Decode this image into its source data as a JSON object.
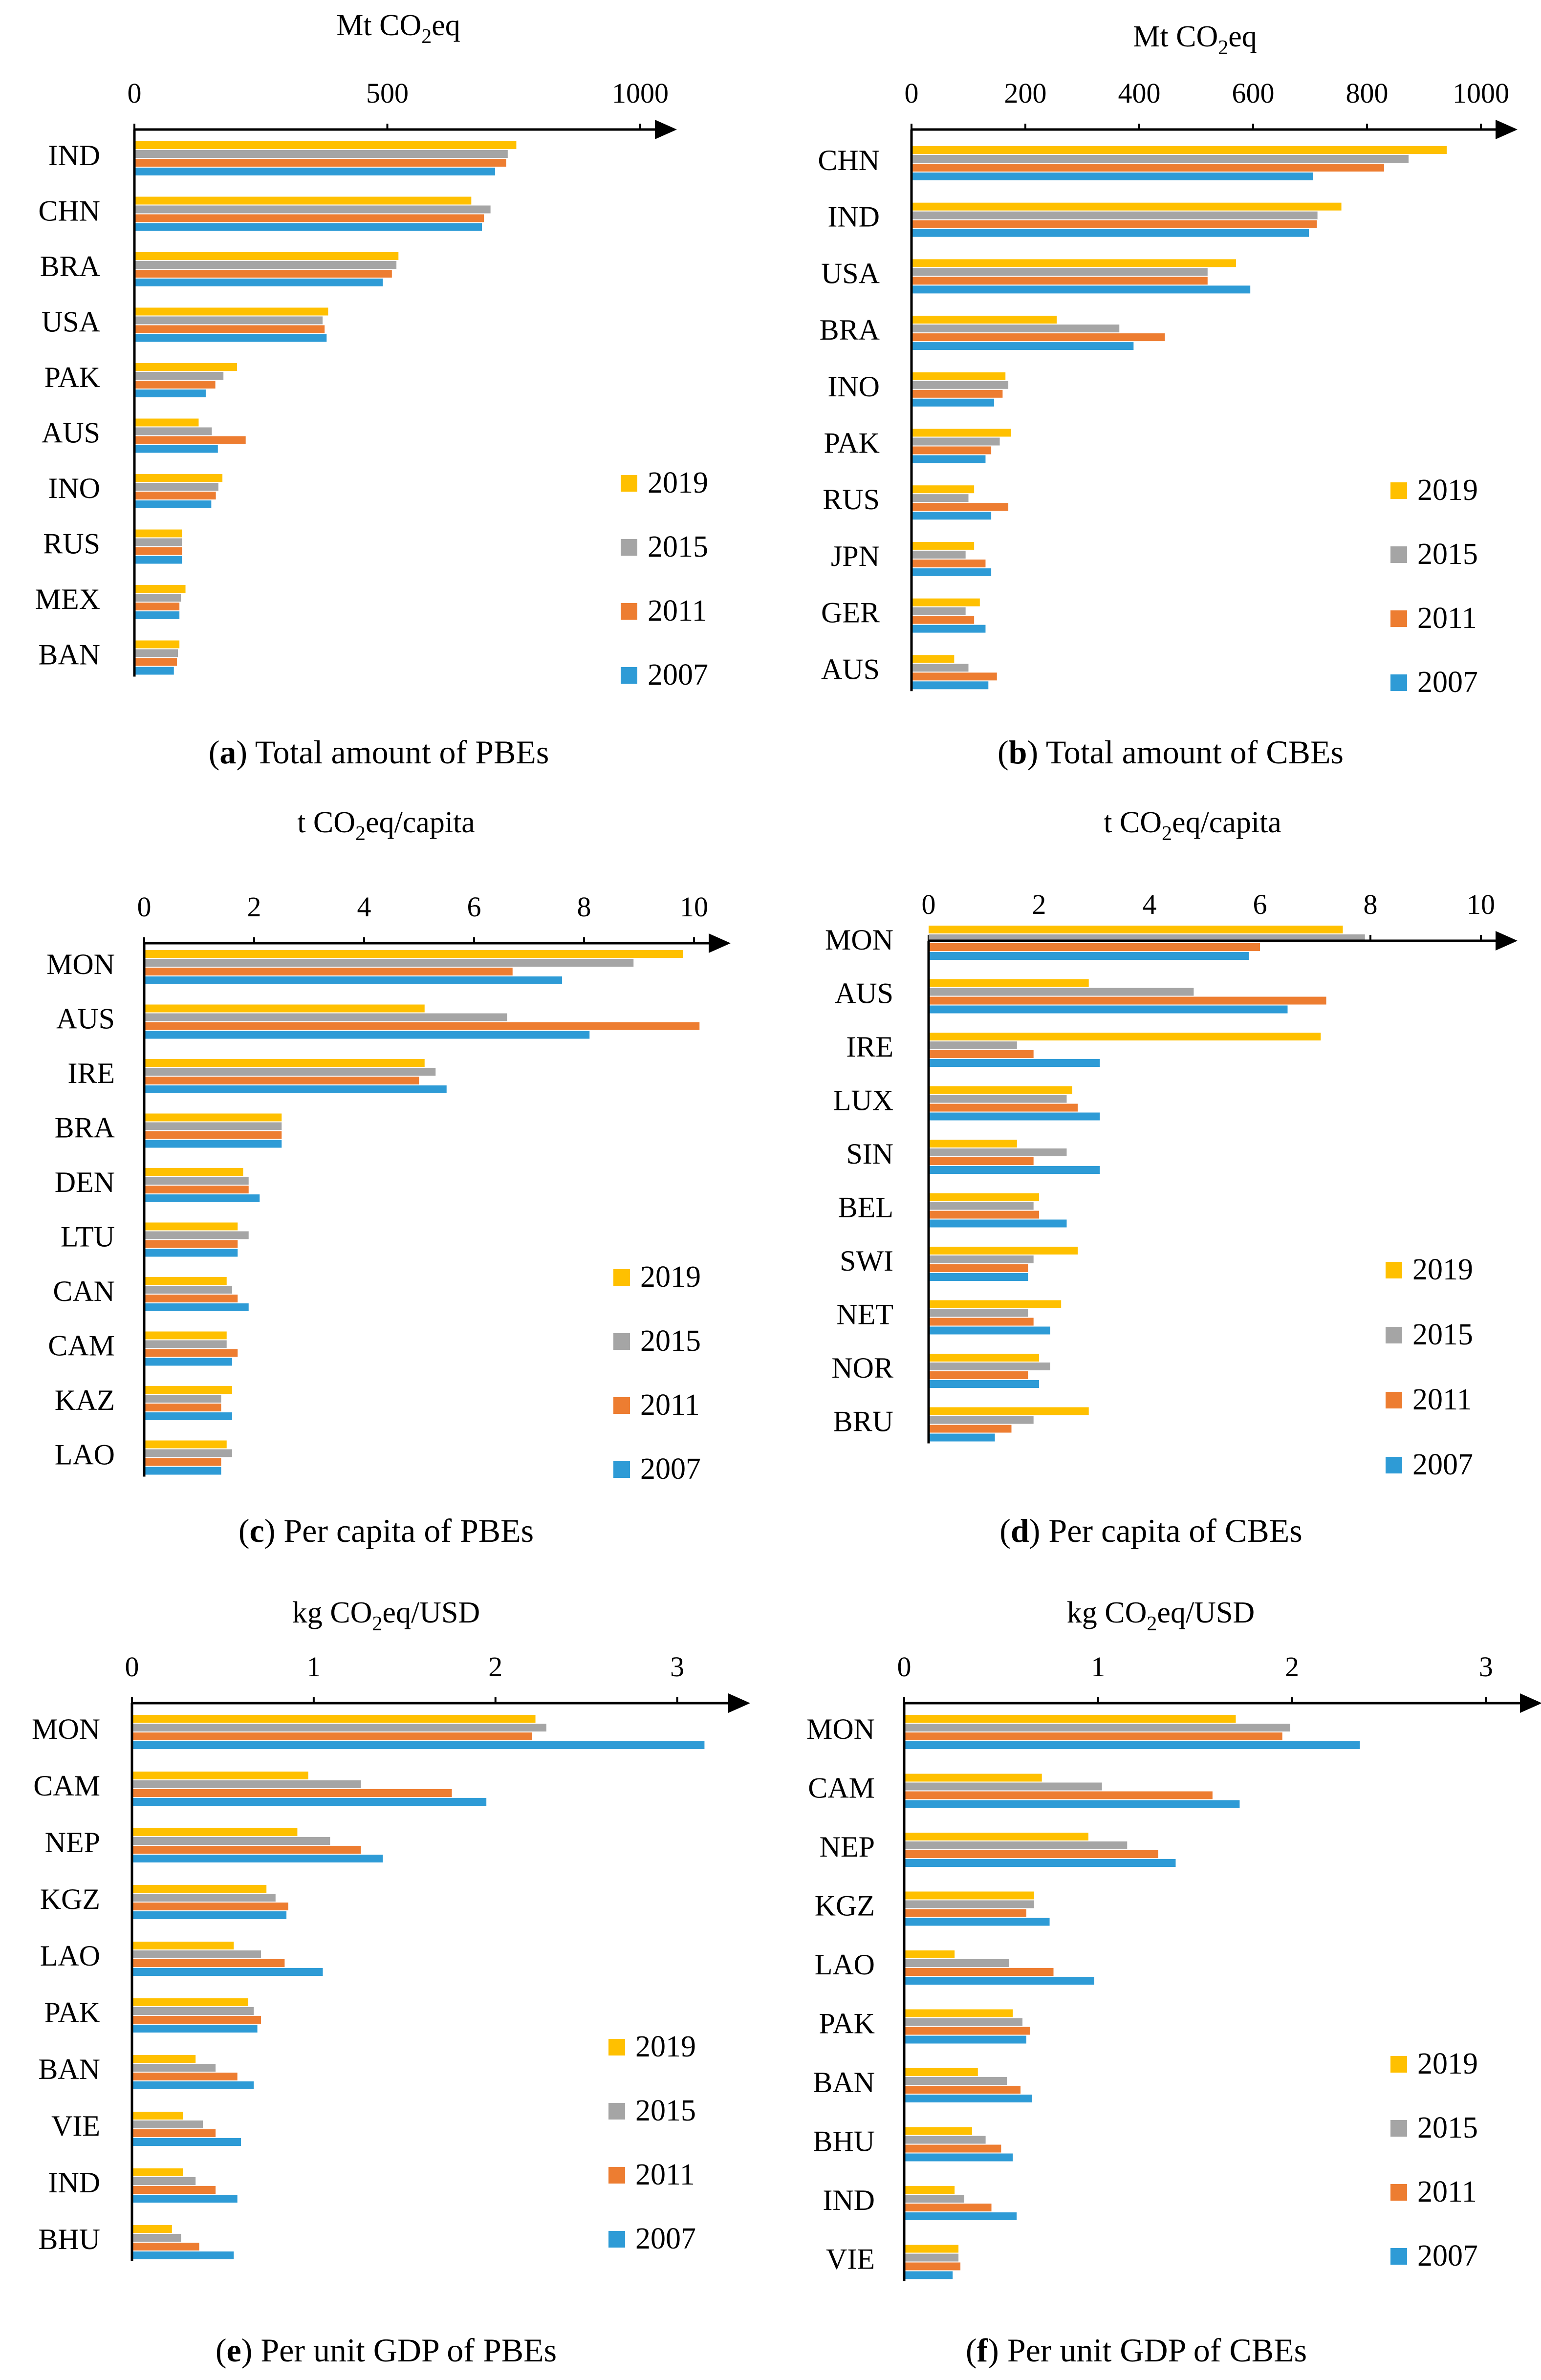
{
  "colors": {
    "2019": "#FFC000",
    "2015": "#A5A5A5",
    "2011": "#ED7D31",
    "2007": "#2E9BD6",
    "axis": "#000000"
  },
  "chart_data": [
    {
      "type": "bar",
      "orientation": "horizontal",
      "panel_label": "a",
      "caption": "Total amount of PBEs",
      "unit_pre": "Mt CO",
      "unit_sub": "2",
      "unit_post": "eq",
      "xlim": [
        0,
        1000
      ],
      "ticks": [
        0,
        500,
        1000
      ],
      "categories": [
        "IND",
        "CHN",
        "BRA",
        "USA",
        "PAK",
        "AUS",
        "INO",
        "RUS",
        "MEX",
        "BAN"
      ],
      "series": [
        {
          "name": "2019",
          "values": [
            755,
            666,
            522,
            383,
            203,
            127,
            174,
            94,
            101,
            89
          ]
        },
        {
          "name": "2015",
          "values": [
            738,
            704,
            518,
            372,
            176,
            153,
            166,
            94,
            92,
            86
          ]
        },
        {
          "name": "2011",
          "values": [
            735,
            691,
            509,
            376,
            160,
            220,
            161,
            94,
            89,
            84
          ]
        },
        {
          "name": "2007",
          "values": [
            713,
            687,
            491,
            380,
            141,
            165,
            152,
            94,
            89,
            78
          ]
        }
      ],
      "legend": [
        "2019",
        "2015",
        "2011",
        "2007"
      ]
    },
    {
      "type": "bar",
      "orientation": "horizontal",
      "panel_label": "b",
      "caption": "Total amount of CBEs",
      "unit_pre": "Mt CO",
      "unit_sub": "2",
      "unit_post": "eq",
      "xlim": [
        0,
        1000
      ],
      "ticks": [
        0,
        200,
        400,
        600,
        800,
        1000
      ],
      "categories": [
        "CHN",
        "IND",
        "USA",
        "BRA",
        "INO",
        "PAK",
        "RUS",
        "JPN",
        "GER",
        "AUS"
      ],
      "series": [
        {
          "name": "2019",
          "values": [
            940,
            755,
            570,
            255,
            165,
            175,
            110,
            110,
            120,
            75
          ]
        },
        {
          "name": "2015",
          "values": [
            873,
            713,
            520,
            365,
            170,
            155,
            100,
            95,
            95,
            100
          ]
        },
        {
          "name": "2011",
          "values": [
            830,
            712,
            520,
            445,
            160,
            140,
            170,
            130,
            110,
            150
          ]
        },
        {
          "name": "2007",
          "values": [
            705,
            698,
            595,
            390,
            145,
            130,
            140,
            140,
            130,
            135
          ]
        }
      ],
      "legend": [
        "2019",
        "2015",
        "2011",
        "2007"
      ]
    },
    {
      "type": "bar",
      "orientation": "horizontal",
      "panel_label": "c",
      "caption": "Per capita of PBEs",
      "unit_pre": "t CO",
      "unit_sub": "2",
      "unit_post": "eq/capita",
      "xlim": [
        0,
        10
      ],
      "ticks": [
        0,
        2,
        4,
        6,
        8,
        10
      ],
      "categories": [
        "MON",
        "AUS",
        "IRE",
        "BRA",
        "DEN",
        "LTU",
        "CAN",
        "CAM",
        "KAZ",
        "LAO"
      ],
      "series": [
        {
          "name": "2019",
          "values": [
            9.8,
            5.1,
            5.1,
            2.5,
            1.8,
            1.7,
            1.5,
            1.5,
            1.6,
            1.5
          ]
        },
        {
          "name": "2015",
          "values": [
            8.9,
            6.6,
            5.3,
            2.5,
            1.9,
            1.9,
            1.6,
            1.5,
            1.4,
            1.6
          ]
        },
        {
          "name": "2011",
          "values": [
            6.7,
            10.1,
            5.0,
            2.5,
            1.9,
            1.7,
            1.7,
            1.7,
            1.4,
            1.4
          ]
        },
        {
          "name": "2007",
          "values": [
            7.6,
            8.1,
            5.5,
            2.5,
            2.1,
            1.7,
            1.9,
            1.6,
            1.6,
            1.4
          ]
        }
      ],
      "legend": [
        "2019",
        "2015",
        "2011",
        "2007"
      ]
    },
    {
      "type": "bar",
      "orientation": "horizontal",
      "panel_label": "d",
      "caption": "Per capita of CBEs",
      "unit_pre": "t CO",
      "unit_sub": "2",
      "unit_post": "eq/capita",
      "xlim": [
        0,
        10
      ],
      "ticks": [
        0,
        2,
        4,
        6,
        8,
        10
      ],
      "categories": [
        "MON",
        "AUS",
        "IRE",
        "LUX",
        "SIN",
        "BEL",
        "SWI",
        "NET",
        "NOR",
        "BRU"
      ],
      "series": [
        {
          "name": "2019",
          "values": [
            7.5,
            2.9,
            7.1,
            2.6,
            1.6,
            2.0,
            2.7,
            2.4,
            2.0,
            2.9
          ]
        },
        {
          "name": "2015",
          "values": [
            7.9,
            4.8,
            1.6,
            2.5,
            2.5,
            1.9,
            1.9,
            1.8,
            2.2,
            1.9
          ]
        },
        {
          "name": "2011",
          "values": [
            6.0,
            7.2,
            1.9,
            2.7,
            1.9,
            2.0,
            1.8,
            1.9,
            1.8,
            1.5
          ]
        },
        {
          "name": "2007",
          "values": [
            5.8,
            6.5,
            3.1,
            3.1,
            3.1,
            2.5,
            1.8,
            2.2,
            2.0,
            1.2
          ]
        }
      ],
      "legend": [
        "2019",
        "2015",
        "2011",
        "2007"
      ]
    },
    {
      "type": "bar",
      "orientation": "horizontal",
      "panel_label": "e",
      "caption": "Per unit GDP of PBEs",
      "unit_pre": "kg CO",
      "unit_sub": "2",
      "unit_post": "eq/USD",
      "xlim": [
        0,
        3.2
      ],
      "ticks": [
        0,
        1,
        2,
        3
      ],
      "categories": [
        "MON",
        "CAM",
        "NEP",
        "KGZ",
        "LAO",
        "PAK",
        "BAN",
        "VIE",
        "IND",
        "BHU"
      ],
      "series": [
        {
          "name": "2019",
          "values": [
            2.22,
            0.97,
            0.91,
            0.74,
            0.56,
            0.64,
            0.35,
            0.28,
            0.28,
            0.22
          ]
        },
        {
          "name": "2015",
          "values": [
            2.28,
            1.26,
            1.09,
            0.79,
            0.71,
            0.67,
            0.46,
            0.39,
            0.35,
            0.27
          ]
        },
        {
          "name": "2011",
          "values": [
            2.2,
            1.76,
            1.26,
            0.86,
            0.84,
            0.71,
            0.58,
            0.46,
            0.46,
            0.37
          ]
        },
        {
          "name": "2007",
          "values": [
            3.15,
            1.95,
            1.38,
            0.85,
            1.05,
            0.69,
            0.67,
            0.6,
            0.58,
            0.56
          ]
        }
      ],
      "legend": [
        "2019",
        "2015",
        "2011",
        "2007"
      ]
    },
    {
      "type": "bar",
      "orientation": "horizontal",
      "panel_label": "f",
      "caption": "Per unit GDP of CBEs",
      "unit_pre": "kg CO",
      "unit_sub": "2",
      "unit_post": "eq/USD",
      "xlim": [
        0,
        3.1
      ],
      "ticks": [
        0,
        1,
        2,
        3
      ],
      "categories": [
        "MON",
        "CAM",
        "NEP",
        "KGZ",
        "LAO",
        "PAK",
        "BAN",
        "BHU",
        "IND",
        "VIE"
      ],
      "series": [
        {
          "name": "2019",
          "values": [
            1.71,
            0.71,
            0.95,
            0.67,
            0.26,
            0.56,
            0.38,
            0.35,
            0.26,
            0.28
          ]
        },
        {
          "name": "2015",
          "values": [
            1.99,
            1.02,
            1.15,
            0.67,
            0.54,
            0.61,
            0.53,
            0.42,
            0.31,
            0.28
          ]
        },
        {
          "name": "2011",
          "values": [
            1.95,
            1.59,
            1.31,
            0.63,
            0.77,
            0.65,
            0.6,
            0.5,
            0.45,
            0.29
          ]
        },
        {
          "name": "2007",
          "values": [
            2.35,
            1.73,
            1.4,
            0.75,
            0.98,
            0.63,
            0.66,
            0.56,
            0.58,
            0.25
          ]
        }
      ],
      "legend": [
        "2019",
        "2015",
        "2011",
        "2007"
      ]
    }
  ]
}
